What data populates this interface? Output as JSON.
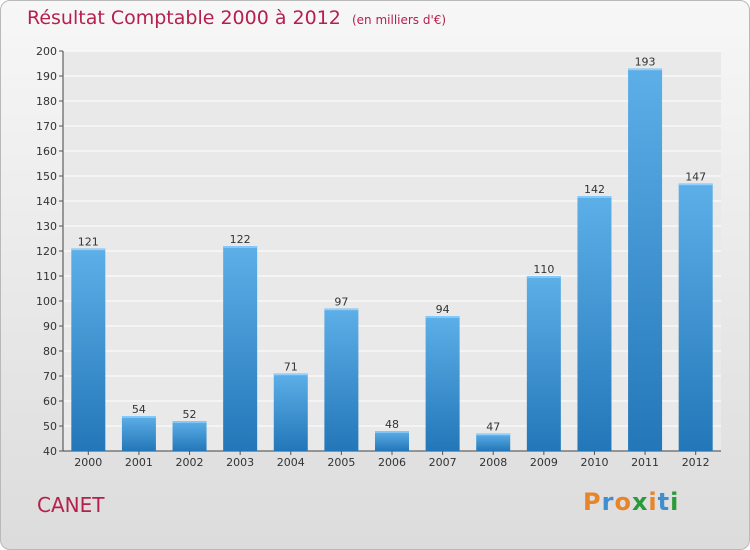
{
  "header": {
    "title": "Résultat Comptable 2000 à 2012",
    "unit": "(en milliers d'€)"
  },
  "footer": {
    "commune": "CANET",
    "logo": "Proxiti"
  },
  "colors": {
    "title": "#b5204e",
    "bar_top": "#5dafe8",
    "bar_bottom": "#2377b8",
    "logo_letters": [
      "#e8852a",
      "#3f8fd0",
      "#e8852a",
      "#2a9a3a",
      "#e8852a",
      "#3f8fd0",
      "#2a9a3a"
    ]
  },
  "chart_data": {
    "type": "bar",
    "title": "Résultat Comptable 2000 à 2012",
    "ylabel": "(en milliers d'€)",
    "xlabel": "",
    "categories": [
      "2000",
      "2001",
      "2002",
      "2003",
      "2004",
      "2005",
      "2006",
      "2007",
      "2008",
      "2009",
      "2010",
      "2011",
      "2012"
    ],
    "values": [
      121,
      54,
      52,
      122,
      71,
      97,
      48,
      94,
      47,
      110,
      142,
      193,
      147
    ],
    "ylim": [
      40,
      200
    ],
    "yticks": [
      40,
      50,
      60,
      70,
      80,
      90,
      100,
      110,
      120,
      130,
      140,
      150,
      160,
      170,
      180,
      190,
      200
    ],
    "grid": true
  }
}
